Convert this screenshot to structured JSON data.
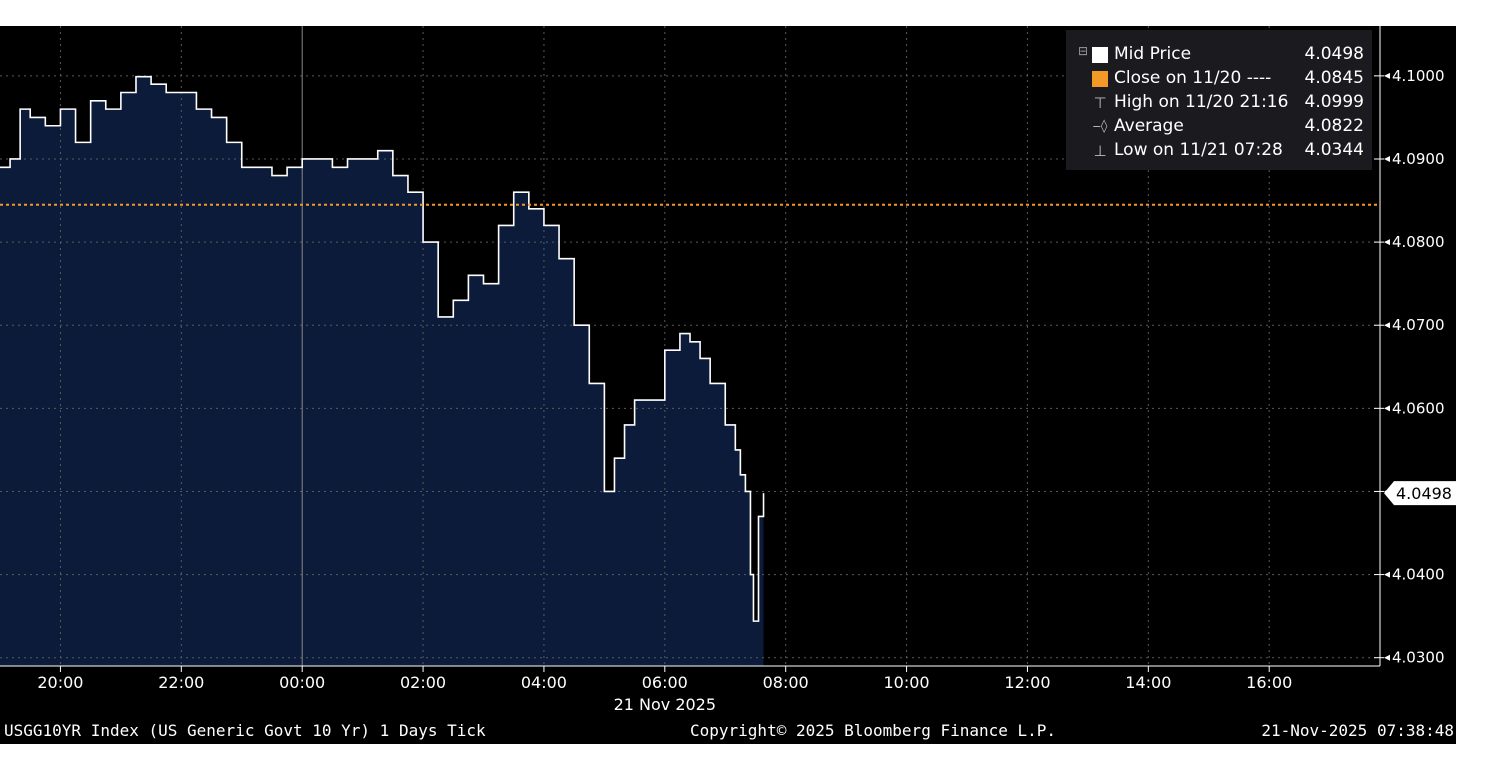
{
  "chart_data": {
    "type": "line",
    "series": [
      {
        "name": "Mid Price",
        "x": [
          "19:00",
          "19:10",
          "19:20",
          "19:30",
          "19:45",
          "20:00",
          "20:15",
          "20:30",
          "20:45",
          "21:00",
          "21:15",
          "21:30",
          "21:45",
          "22:00",
          "22:15",
          "22:30",
          "22:45",
          "23:00",
          "23:15",
          "23:30",
          "23:45",
          "00:00",
          "00:15",
          "00:30",
          "00:45",
          "01:00",
          "01:15",
          "01:30",
          "01:45",
          "02:00",
          "02:15",
          "02:30",
          "02:45",
          "03:00",
          "03:15",
          "03:30",
          "03:45",
          "04:00",
          "04:15",
          "04:30",
          "04:45",
          "05:00",
          "05:10",
          "05:20",
          "05:30",
          "05:45",
          "06:00",
          "06:15",
          "06:25",
          "06:35",
          "06:45",
          "07:00",
          "07:10",
          "07:15",
          "07:20",
          "07:25",
          "07:28",
          "07:33",
          "07:38"
        ],
        "y": [
          4.089,
          4.09,
          4.096,
          4.095,
          4.094,
          4.096,
          4.092,
          4.097,
          4.096,
          4.098,
          4.0999,
          4.099,
          4.098,
          4.098,
          4.096,
          4.095,
          4.092,
          4.089,
          4.089,
          4.088,
          4.089,
          4.09,
          4.09,
          4.089,
          4.09,
          4.09,
          4.091,
          4.088,
          4.086,
          4.08,
          4.071,
          4.073,
          4.076,
          4.075,
          4.082,
          4.086,
          4.084,
          4.082,
          4.078,
          4.07,
          4.063,
          4.05,
          4.054,
          4.058,
          4.061,
          4.061,
          4.067,
          4.069,
          4.068,
          4.066,
          4.063,
          4.058,
          4.055,
          4.052,
          4.05,
          4.04,
          4.0344,
          4.047,
          4.0498
        ]
      }
    ],
    "reference_line": {
      "name": "Close on 11/20",
      "value": 4.0845,
      "color": "#f39a26"
    },
    "ylim": [
      4.029,
      4.106
    ],
    "y_ticks": [
      "4.0300",
      "4.0400",
      "4.0500",
      "4.0600",
      "4.0700",
      "4.0800",
      "4.0900",
      "4.1000"
    ],
    "x_range": [
      "19:00",
      "17:50"
    ],
    "x_ticks": [
      "20:00",
      "22:00",
      "00:00",
      "02:00",
      "04:00",
      "06:00",
      "08:00",
      "10:00",
      "12:00",
      "14:00",
      "16:00"
    ],
    "x_date_label": "21 Nov 2025",
    "last_value_label": "4.0498",
    "grid": true,
    "legend_placement": "top-right",
    "colors": {
      "background": "#000000",
      "area_fill": "#0d1b3a",
      "line": "#ffffff",
      "close_line": "#f39a26",
      "grid": "#5a5a5a",
      "legend_bg": "#1b1b1f"
    }
  },
  "legend": {
    "rows": [
      {
        "label": "Mid Price",
        "value": "4.0498",
        "icon": "white-square-icon"
      },
      {
        "label": "Close on 11/20 ----",
        "value": "4.0845",
        "icon": "orange-square-icon"
      },
      {
        "label": "High on 11/20 21:16",
        "value": "4.0999",
        "icon": "high-marker-icon"
      },
      {
        "label": "Average",
        "value": "4.0822",
        "icon": "average-marker-icon"
      },
      {
        "label": "Low on 11/21 07:28",
        "value": "4.0344",
        "icon": "low-marker-icon"
      }
    ]
  },
  "footer": {
    "left": "USGG10YR Index (US Generic Govt 10 Yr) 1 Days Tick",
    "center": "Copyright© 2025 Bloomberg Finance L.P.",
    "right": "21-Nov-2025 07:38:48"
  }
}
